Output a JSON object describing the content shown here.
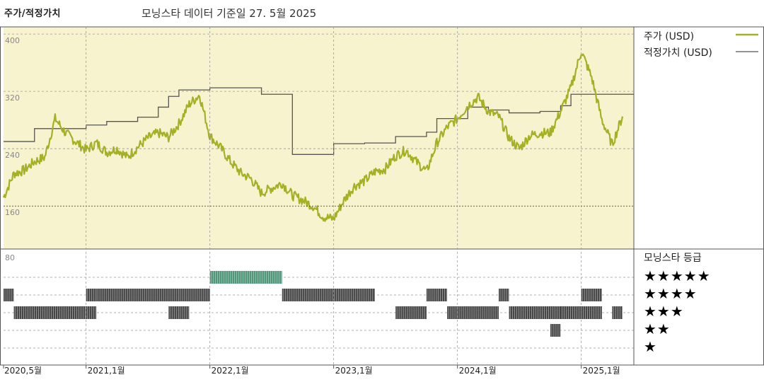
{
  "header": {
    "left_title": "주가/적정가치",
    "center_title": "모닝스타 데이터 기준일 27. 5월 2025"
  },
  "legend": {
    "price_label": "주가 (USD)",
    "fair_label": "적정가치 (USD)",
    "rating_title": "모닝스타 등급"
  },
  "colors": {
    "price": "#a5b025",
    "fair": "#555555",
    "upper_bg": "#f7f3cf",
    "bar_dark": "#333333",
    "bar_green": "#3c8a6a"
  },
  "stars": [
    "★★★★★",
    "★★★★",
    "★★★",
    "★★",
    "★"
  ],
  "chart_data": {
    "type": "line",
    "x_tick_labels": [
      "2020,5월",
      "2021,1월",
      "2022,1월",
      "2023,1월",
      "2024,1월",
      "2025,1월"
    ],
    "x_tick_dates": [
      "2020-05",
      "2021-01",
      "2022-01",
      "2023-01",
      "2024-01",
      "2025-01"
    ],
    "y_tick_labels": [
      "400",
      "320",
      "240",
      "160"
    ],
    "ylim": [
      100,
      410
    ],
    "rating_axis_label": "80",
    "series": [
      {
        "name": "주가 (USD)",
        "points": [
          [
            "2020-05",
            172
          ],
          [
            "2020-06",
            205
          ],
          [
            "2020-07",
            210
          ],
          [
            "2020-08",
            222
          ],
          [
            "2020-09",
            228
          ],
          [
            "2020-10",
            282
          ],
          [
            "2020-11",
            262
          ],
          [
            "2020-12",
            250
          ],
          [
            "2021-01",
            238
          ],
          [
            "2021-02",
            248
          ],
          [
            "2021-03",
            235
          ],
          [
            "2021-04",
            240
          ],
          [
            "2021-05",
            228
          ],
          [
            "2021-06",
            242
          ],
          [
            "2021-07",
            255
          ],
          [
            "2021-08",
            262
          ],
          [
            "2021-09",
            256
          ],
          [
            "2021-10",
            275
          ],
          [
            "2021-11",
            302
          ],
          [
            "2021-12",
            315
          ],
          [
            "2022-01",
            258
          ],
          [
            "2022-02",
            242
          ],
          [
            "2022-03",
            222
          ],
          [
            "2022-04",
            206
          ],
          [
            "2022-05",
            198
          ],
          [
            "2022-06",
            178
          ],
          [
            "2022-07",
            185
          ],
          [
            "2022-08",
            192
          ],
          [
            "2022-09",
            175
          ],
          [
            "2022-10",
            168
          ],
          [
            "2022-11",
            160
          ],
          [
            "2022-12",
            145
          ],
          [
            "2023-01",
            142
          ],
          [
            "2023-02",
            168
          ],
          [
            "2023-03",
            188
          ],
          [
            "2023-04",
            195
          ],
          [
            "2023-05",
            208
          ],
          [
            "2023-06",
            212
          ],
          [
            "2023-07",
            230
          ],
          [
            "2023-08",
            238
          ],
          [
            "2023-09",
            222
          ],
          [
            "2023-10",
            208
          ],
          [
            "2023-11",
            248
          ],
          [
            "2023-12",
            270
          ],
          [
            "2024-01",
            282
          ],
          [
            "2024-02",
            300
          ],
          [
            "2024-03",
            312
          ],
          [
            "2024-04",
            292
          ],
          [
            "2024-05",
            285
          ],
          [
            "2024-06",
            255
          ],
          [
            "2024-07",
            240
          ],
          [
            "2024-08",
            258
          ],
          [
            "2024-09",
            262
          ],
          [
            "2024-10",
            262
          ],
          [
            "2024-11",
            292
          ],
          [
            "2024-12",
            325
          ],
          [
            "2025-01",
            376
          ],
          [
            "2025-02",
            340
          ],
          [
            "2025-03",
            280
          ],
          [
            "2025-04",
            246
          ],
          [
            "2025-05",
            285
          ]
        ]
      },
      {
        "name": "적정가치 (USD)",
        "points": [
          [
            "2020-05",
            250
          ],
          [
            "2020-07",
            250
          ],
          [
            "2020-08",
            268
          ],
          [
            "2020-12",
            268
          ],
          [
            "2021-01",
            273
          ],
          [
            "2021-03",
            278
          ],
          [
            "2021-06",
            284
          ],
          [
            "2021-08",
            298
          ],
          [
            "2021-09",
            313
          ],
          [
            "2021-10",
            322
          ],
          [
            "2022-01",
            325
          ],
          [
            "2022-06",
            316
          ],
          [
            "2022-08",
            316
          ],
          [
            "2022-09",
            232
          ],
          [
            "2022-12",
            232
          ],
          [
            "2023-01",
            247
          ],
          [
            "2023-04",
            248
          ],
          [
            "2023-07",
            257
          ],
          [
            "2023-10",
            263
          ],
          [
            "2023-11",
            282
          ],
          [
            "2024-02",
            298
          ],
          [
            "2024-04",
            294
          ],
          [
            "2024-06",
            290
          ],
          [
            "2024-09",
            292
          ],
          [
            "2024-11",
            300
          ],
          [
            "2024-12",
            316
          ],
          [
            "2025-05",
            316
          ]
        ]
      }
    ],
    "rating_history": [
      {
        "stars": 5,
        "from": "2022-01",
        "to": "2022-08"
      },
      {
        "stars": 4,
        "from": "2020-05",
        "to": "2020-06"
      },
      {
        "stars": 4,
        "from": "2021-01",
        "to": "2021-02"
      },
      {
        "stars": 4,
        "from": "2021-02",
        "to": "2021-10"
      },
      {
        "stars": 4,
        "from": "2021-10",
        "to": "2022-01"
      },
      {
        "stars": 4,
        "from": "2022-08",
        "to": "2023-05"
      },
      {
        "stars": 4,
        "from": "2023-10",
        "to": "2023-11"
      },
      {
        "stars": 4,
        "from": "2023-11",
        "to": "2023-12"
      },
      {
        "stars": 4,
        "from": "2024-05",
        "to": "2024-06"
      },
      {
        "stars": 4,
        "from": "2025-01",
        "to": "2025-03"
      },
      {
        "stars": 3,
        "from": "2020-06",
        "to": "2021-01"
      },
      {
        "stars": 3,
        "from": "2021-01",
        "to": "2021-02"
      },
      {
        "stars": 3,
        "from": "2021-09",
        "to": "2021-10"
      },
      {
        "stars": 3,
        "from": "2021-10",
        "to": "2021-11"
      },
      {
        "stars": 3,
        "from": "2023-07",
        "to": "2023-10"
      },
      {
        "stars": 3,
        "from": "2023-12",
        "to": "2024-05"
      },
      {
        "stars": 3,
        "from": "2024-06",
        "to": "2024-11"
      },
      {
        "stars": 3,
        "from": "2024-11",
        "to": "2025-03"
      },
      {
        "stars": 3,
        "from": "2025-04",
        "to": "2025-05"
      },
      {
        "stars": 2,
        "from": "2024-10",
        "to": "2024-11"
      }
    ]
  }
}
